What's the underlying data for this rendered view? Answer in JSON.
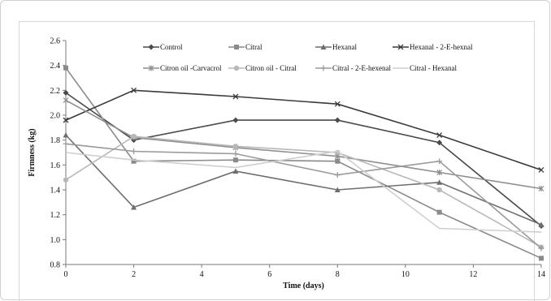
{
  "chart_data": {
    "type": "line",
    "xlabel": "Time (days)",
    "ylabel": "Firmness (kg)",
    "xlim": [
      0,
      14
    ],
    "ylim": [
      0.8,
      2.6
    ],
    "xticks": [
      0,
      2,
      4,
      6,
      8,
      10,
      12,
      14
    ],
    "yticks": [
      0.8,
      1.0,
      1.2,
      1.4,
      1.6,
      1.8,
      2.0,
      2.2,
      2.4,
      2.6
    ],
    "ytick_labels": [
      "0.8",
      "1.0",
      "1.2",
      "1.4",
      "1.6",
      "1.8",
      "2.0",
      "2.2",
      "2.4",
      "2.6"
    ],
    "grid": false,
    "legend_position": "top",
    "x": [
      0,
      2,
      5,
      8,
      11,
      14
    ],
    "series": [
      {
        "name": "Control",
        "marker": "diamond",
        "color": "#4a4a4a",
        "values": [
          2.18,
          1.8,
          1.96,
          1.96,
          1.78,
          1.11
        ]
      },
      {
        "name": "Citral",
        "marker": "square",
        "color": "#8a8a8a",
        "values": [
          2.38,
          1.63,
          1.64,
          1.63,
          1.22,
          0.85
        ]
      },
      {
        "name": "Hexanal",
        "marker": "triangle",
        "color": "#6e6e6e",
        "values": [
          1.84,
          1.26,
          1.55,
          1.4,
          1.46,
          1.12
        ]
      },
      {
        "name": "Hexanal - 2-E-hexnal",
        "marker": "x",
        "color": "#3a3a3a",
        "values": [
          1.96,
          2.2,
          2.15,
          2.09,
          1.84,
          1.56
        ]
      },
      {
        "name": "Citron oil -Carvacrol",
        "marker": "star",
        "color": "#8f8f8f",
        "values": [
          2.12,
          1.82,
          1.74,
          1.67,
          1.54,
          1.41
        ]
      },
      {
        "name": "Citron oil - Citral",
        "marker": "circle",
        "color": "#b8b8b8",
        "values": [
          1.48,
          1.83,
          1.75,
          1.7,
          1.4,
          0.94
        ]
      },
      {
        "name": "Citral - 2-E-hexenal",
        "marker": "plus",
        "color": "#9a9a9a",
        "values": [
          1.77,
          1.71,
          1.69,
          1.52,
          1.63,
          0.93
        ]
      },
      {
        "name": "Citral - Hexanal",
        "marker": "none",
        "color": "#cfcfcf",
        "values": [
          1.7,
          1.64,
          1.58,
          1.71,
          1.09,
          1.06
        ]
      }
    ]
  }
}
